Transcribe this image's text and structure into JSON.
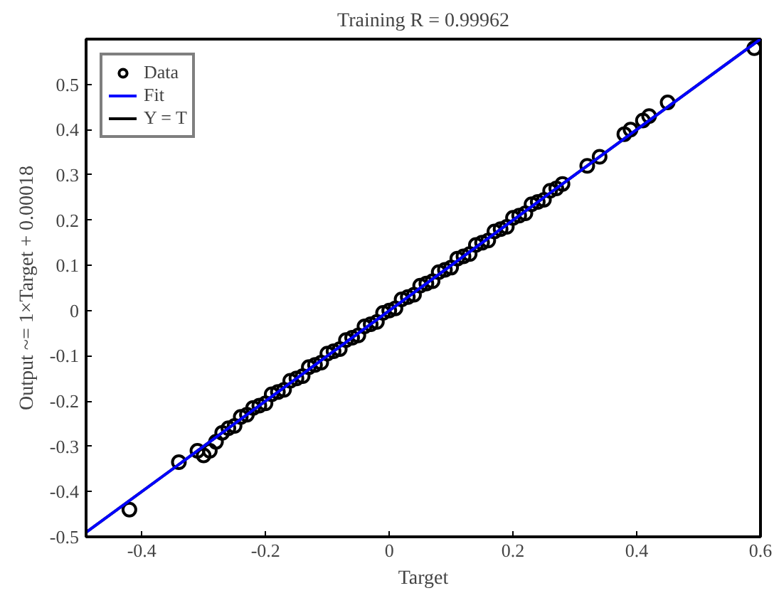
{
  "chart_data": {
    "type": "scatter",
    "title": "Training R = 0.99962",
    "xlabel": "Target",
    "ylabel": "Output ~= 1×Target + 0.00018",
    "xlim": [
      -0.49,
      0.6
    ],
    "ylim": [
      -0.5,
      0.6
    ],
    "xticks": [
      -0.4,
      -0.2,
      0,
      0.2,
      0.4,
      0.6
    ],
    "yticks": [
      -0.5,
      -0.4,
      -0.3,
      -0.2,
      -0.1,
      0,
      0.1,
      0.2,
      0.3,
      0.4,
      0.5
    ],
    "grid": false,
    "legend": "top left",
    "series": [
      {
        "name": "Data",
        "marker": "circle",
        "color": "#000000",
        "x": [
          -0.42,
          -0.34,
          -0.31,
          -0.3,
          -0.29,
          -0.28,
          -0.27,
          -0.26,
          -0.25,
          -0.24,
          -0.23,
          -0.22,
          -0.21,
          -0.2,
          -0.19,
          -0.18,
          -0.17,
          -0.16,
          -0.15,
          -0.14,
          -0.13,
          -0.12,
          -0.11,
          -0.1,
          -0.09,
          -0.08,
          -0.07,
          -0.06,
          -0.05,
          -0.04,
          -0.03,
          -0.02,
          -0.01,
          0,
          0.01,
          0.02,
          0.03,
          0.04,
          0.05,
          0.06,
          0.07,
          0.08,
          0.09,
          0.1,
          0.11,
          0.12,
          0.13,
          0.14,
          0.15,
          0.16,
          0.17,
          0.18,
          0.19,
          0.2,
          0.21,
          0.22,
          0.23,
          0.24,
          0.25,
          0.26,
          0.27,
          0.28,
          0.32,
          0.34,
          0.38,
          0.39,
          0.41,
          0.42,
          0.45,
          0.59
        ],
        "values": [
          -0.44,
          -0.335,
          -0.31,
          -0.32,
          -0.31,
          -0.29,
          -0.27,
          -0.26,
          -0.255,
          -0.235,
          -0.23,
          -0.215,
          -0.21,
          -0.205,
          -0.185,
          -0.18,
          -0.175,
          -0.155,
          -0.15,
          -0.145,
          -0.125,
          -0.12,
          -0.115,
          -0.095,
          -0.09,
          -0.085,
          -0.065,
          -0.06,
          -0.055,
          -0.035,
          -0.03,
          -0.025,
          -0.005,
          0,
          0.005,
          0.025,
          0.03,
          0.035,
          0.055,
          0.06,
          0.065,
          0.085,
          0.09,
          0.095,
          0.115,
          0.12,
          0.125,
          0.145,
          0.15,
          0.155,
          0.175,
          0.18,
          0.185,
          0.205,
          0.21,
          0.215,
          0.235,
          0.24,
          0.245,
          0.265,
          0.27,
          0.28,
          0.32,
          0.34,
          0.39,
          0.4,
          0.42,
          0.43,
          0.46,
          0.58
        ]
      },
      {
        "name": "Fit",
        "type": "line",
        "color": "#0000ff",
        "line_style": "solid",
        "x": [
          -0.49,
          0.6
        ],
        "values": [
          -0.49,
          0.6
        ]
      },
      {
        "name": "Y = T",
        "type": "line",
        "color": "#000000",
        "line_style": "solid",
        "x": [
          -0.49,
          0.6
        ],
        "values": [
          -0.49,
          0.6
        ]
      }
    ]
  }
}
